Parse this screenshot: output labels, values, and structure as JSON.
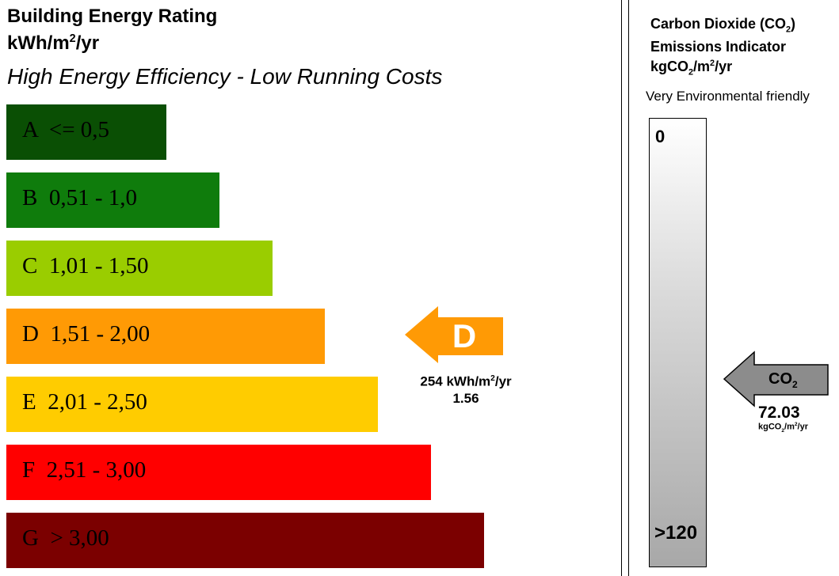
{
  "header": {
    "title": "Building Energy Rating",
    "unit_prefix": "kWh/m",
    "unit_sup": "2",
    "unit_suffix": "/yr",
    "subtitle": "High Energy Efficiency - Low Running Costs"
  },
  "chart_data": {
    "type": "bar",
    "categories": [
      "A",
      "B",
      "C",
      "D",
      "E",
      "F",
      "G"
    ],
    "labels": [
      "A  <= 0,5",
      "B  0,51 - 1,0",
      "C  1,01 - 1,50",
      "D  1,51 - 2,00",
      "E  2,01 - 2,50",
      "F  2,51 - 3,00",
      "G  > 3,00"
    ],
    "colors": [
      "#0a4f04",
      "#0f7c0c",
      "#9acd00",
      "#ff9a05",
      "#ffcc00",
      "#ff0000",
      "#7b0000"
    ],
    "text_colors": [
      "#000000",
      "#000000",
      "#000000",
      "#000000",
      "#000000",
      "#000000",
      "#000000"
    ],
    "values": [
      1,
      2,
      3,
      4,
      5,
      6,
      7
    ],
    "current_rating": "D",
    "current_color": "#ff9a05"
  },
  "rating": {
    "letter": "D",
    "value_prefix": "254 kWh/m",
    "value_sup": "2",
    "value_suffix": "/yr",
    "value2": "1.56"
  },
  "co2": {
    "title_line1_prefix": "Carbon Dioxide (CO",
    "title_line1_sub": "2",
    "title_line1_suffix": ")",
    "title_line2": "Emissions Indicator",
    "title_line3_prefix": "kgCO",
    "title_line3_sub": "2",
    "title_line3_mid": "/m",
    "title_line3_sup": "2",
    "title_line3_suffix": "/yr",
    "friendly_label": "Very Environmental friendly",
    "scale_min": "0",
    "scale_max": ">120",
    "arrow_label_prefix": "CO",
    "arrow_label_sub": "2",
    "value": "72.03",
    "value_unit_prefix": "kgCO",
    "value_unit_sub": "2",
    "value_unit_mid": "/m",
    "value_unit_sup": "2",
    "value_unit_suffix": "/yr",
    "arrow_color": "#8c8c8c"
  }
}
